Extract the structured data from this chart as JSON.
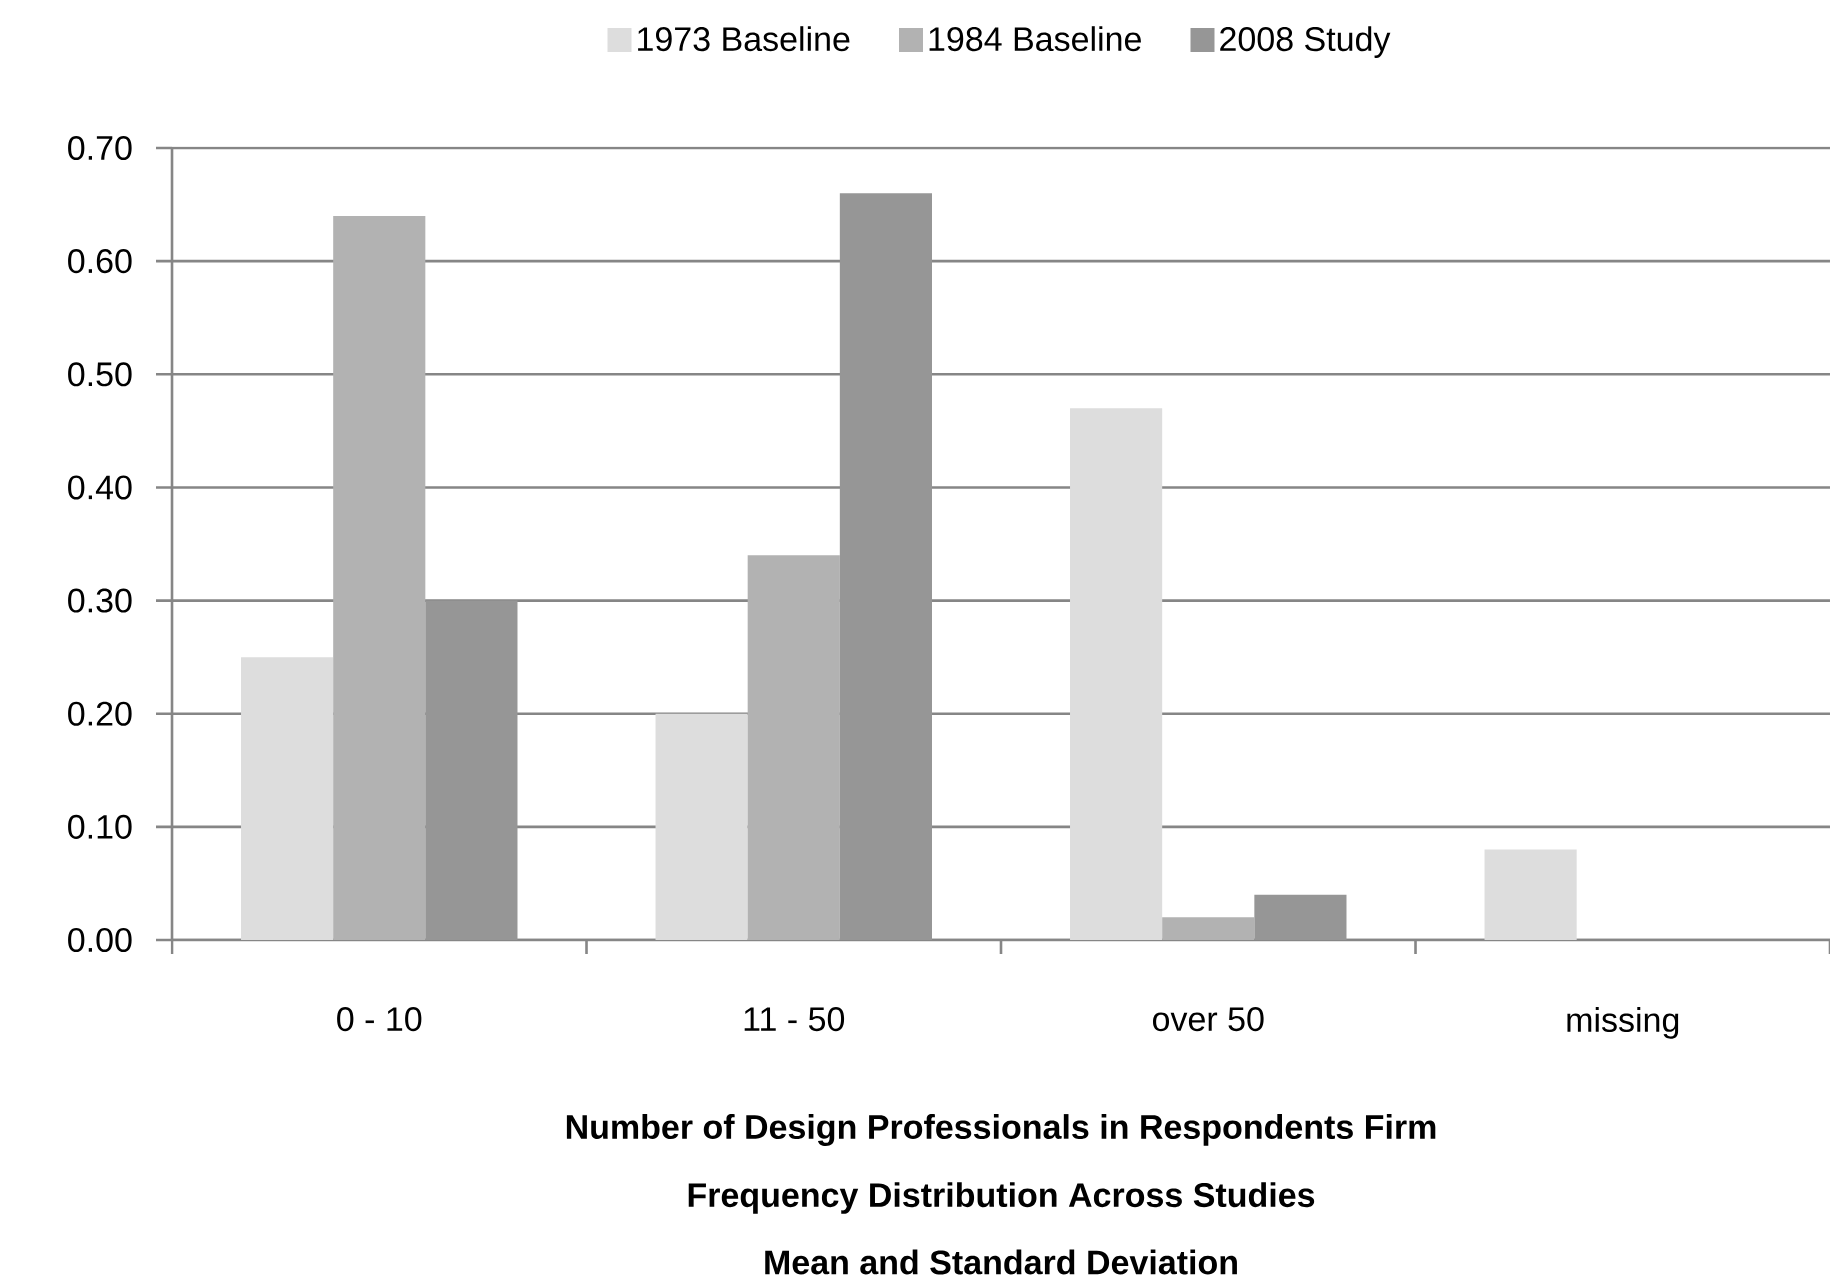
{
  "chart_data": {
    "type": "bar",
    "categories": [
      "0 - 10",
      "11 - 50",
      "over 50",
      "missing"
    ],
    "series": [
      {
        "name": "1973 Baseline",
        "color": "#dddddd",
        "values": [
          0.25,
          0.2,
          0.47,
          0.08
        ]
      },
      {
        "name": "1984 Baseline",
        "color": "#b2b2b2",
        "values": [
          0.64,
          0.34,
          0.02,
          null
        ]
      },
      {
        "name": "2008 Study",
        "color": "#969696",
        "values": [
          0.3,
          0.66,
          0.04,
          null
        ]
      }
    ],
    "ylim": [
      0,
      0.7
    ],
    "yticks": [
      {
        "value": 0,
        "label": "0.00"
      },
      {
        "value": 0.1,
        "label": "0.10"
      },
      {
        "value": 0.2,
        "label": "0.20"
      },
      {
        "value": 0.3,
        "label": "0.30"
      },
      {
        "value": 0.4,
        "label": "0.40"
      },
      {
        "value": 0.5,
        "label": "0.50"
      },
      {
        "value": 0.6,
        "label": "0.60"
      },
      {
        "value": 0.7,
        "label": "0.70"
      }
    ],
    "grid": "y",
    "legend": "top",
    "xlabel": "Number of Design Professionals in Respondents Firm",
    "title": "Frequency Distribution Across Studies",
    "subtitle": "Mean and Standard Deviation"
  }
}
